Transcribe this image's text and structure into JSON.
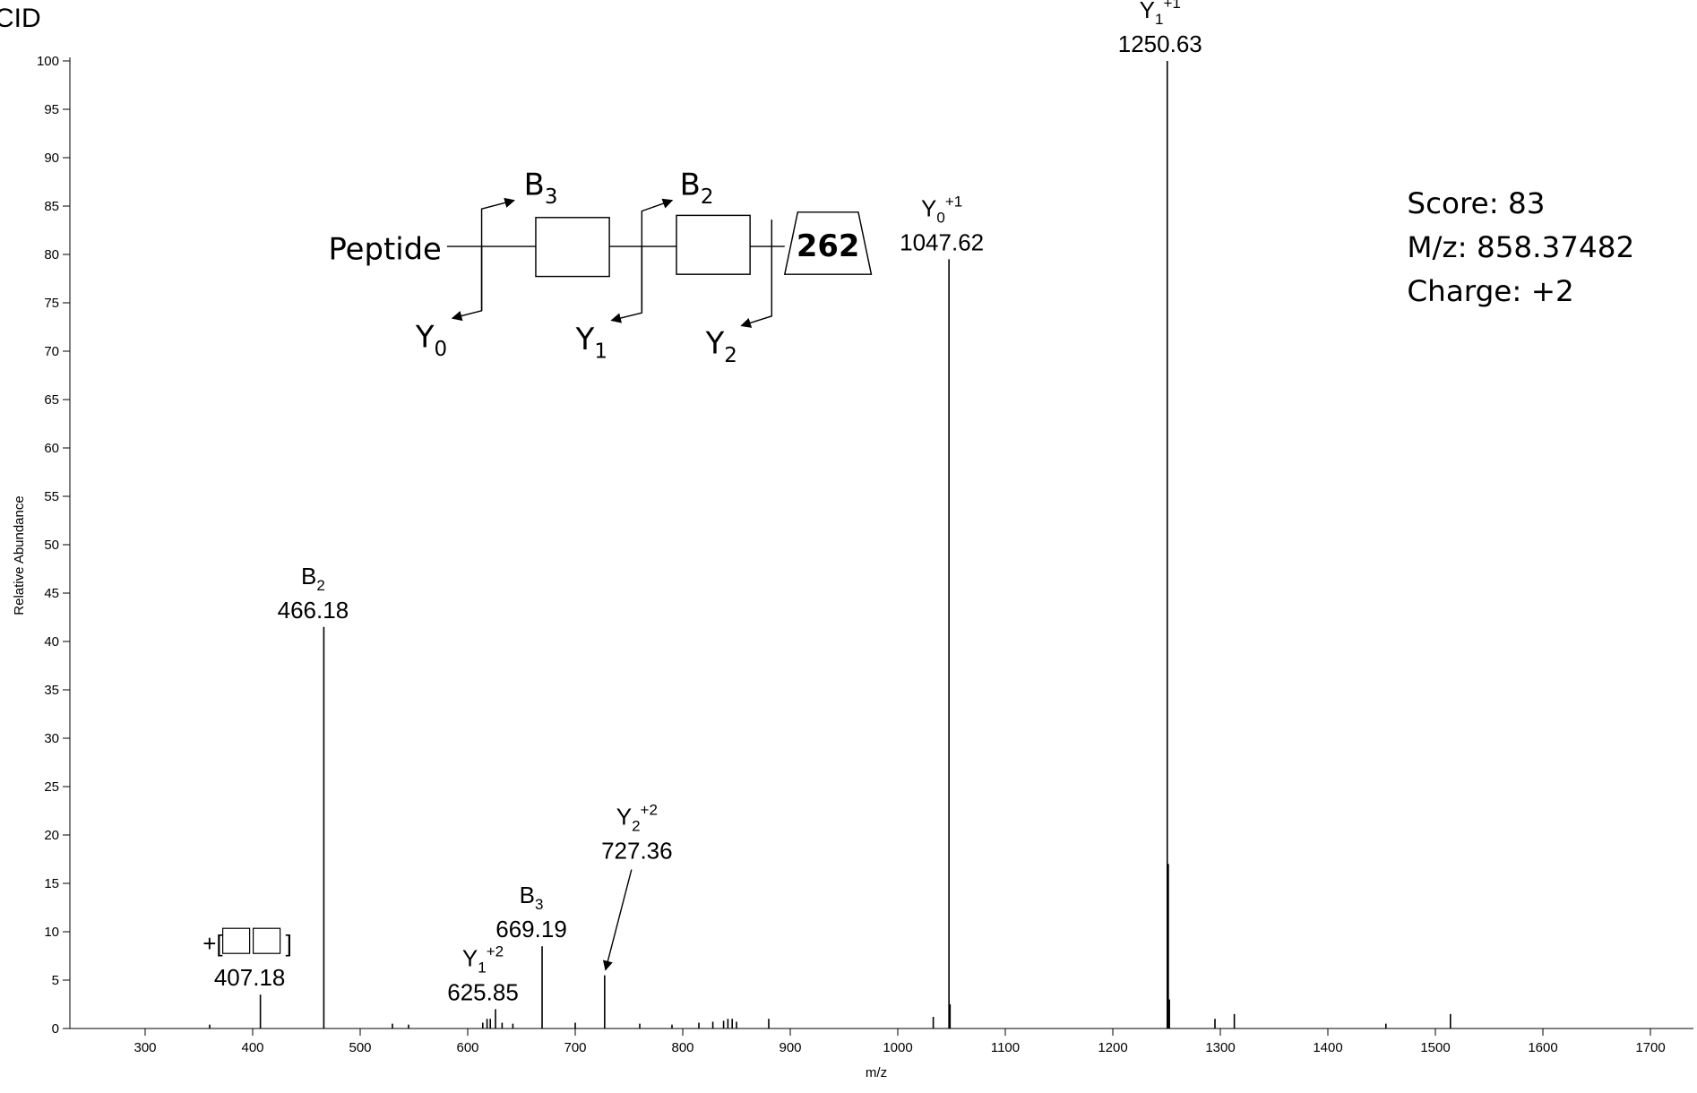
{
  "chart_data": {
    "type": "stem",
    "title": "CID",
    "xlabel": "m/z",
    "ylabel": "Relative Abundance",
    "xlim": [
      230,
      1740
    ],
    "xticks": [
      300,
      400,
      500,
      600,
      700,
      800,
      900,
      1000,
      1100,
      1200,
      1300,
      1400,
      1500,
      1600,
      1700
    ],
    "ylim": [
      0,
      100
    ],
    "yticks": [
      0,
      5,
      10,
      15,
      20,
      25,
      30,
      35,
      40,
      45,
      50,
      55,
      60,
      65,
      70,
      75,
      80,
      85,
      90,
      95,
      100
    ],
    "color": "#000000",
    "labeled_peaks": [
      {
        "prefix": "+[",
        "suffix": "]",
        "mz": 407.18,
        "abundance": 3.5
      },
      {
        "ion": "B",
        "sub": "2",
        "mz": 466.18,
        "abundance": 41.5
      },
      {
        "ion": "Y",
        "sub": "1",
        "sup": "+2",
        "mz": 625.85,
        "abundance": 2
      },
      {
        "ion": "B",
        "sub": "3",
        "mz": 669.19,
        "abundance": 8.5
      },
      {
        "ion": "Y",
        "sub": "2",
        "sup": "+2",
        "mz": 727.36,
        "abundance": 5.5
      },
      {
        "ion": "Y",
        "sub": "0",
        "sup": "+1",
        "mz": 1047.62,
        "abundance": 79.5
      },
      {
        "ion": "Y",
        "sub": "1",
        "sup": "+1",
        "mz": 1250.63,
        "abundance": 100
      }
    ],
    "peaks": {
      "x": [
        360,
        530,
        545,
        614,
        618,
        621,
        632,
        642,
        700,
        760,
        790,
        815,
        828,
        838,
        842,
        846,
        850,
        880,
        1033,
        1048.6,
        1251.6,
        1252.6,
        1295,
        1313,
        1454,
        1514
      ],
      "values": [
        0.4,
        0.5,
        0.4,
        0.6,
        1,
        1,
        0.6,
        0.5,
        0.6,
        0.5,
        0.4,
        0.6,
        0.7,
        0.8,
        1,
        1,
        0.7,
        1,
        1.2,
        2.5,
        17,
        3,
        1,
        1.5,
        0.5,
        1.5
      ]
    },
    "diagram": {
      "peptide": "Peptide",
      "reducing_end": "262",
      "fragments": [
        {
          "ion": "B",
          "sub": "3"
        },
        {
          "ion": "B",
          "sub": "2"
        },
        {
          "ion": "Y",
          "sub": "0"
        },
        {
          "ion": "Y",
          "sub": "1"
        },
        {
          "ion": "Y",
          "sub": "2"
        }
      ]
    },
    "info": [
      "Score: 83",
      "M/z: 858.37482",
      "Charge: +2"
    ]
  }
}
